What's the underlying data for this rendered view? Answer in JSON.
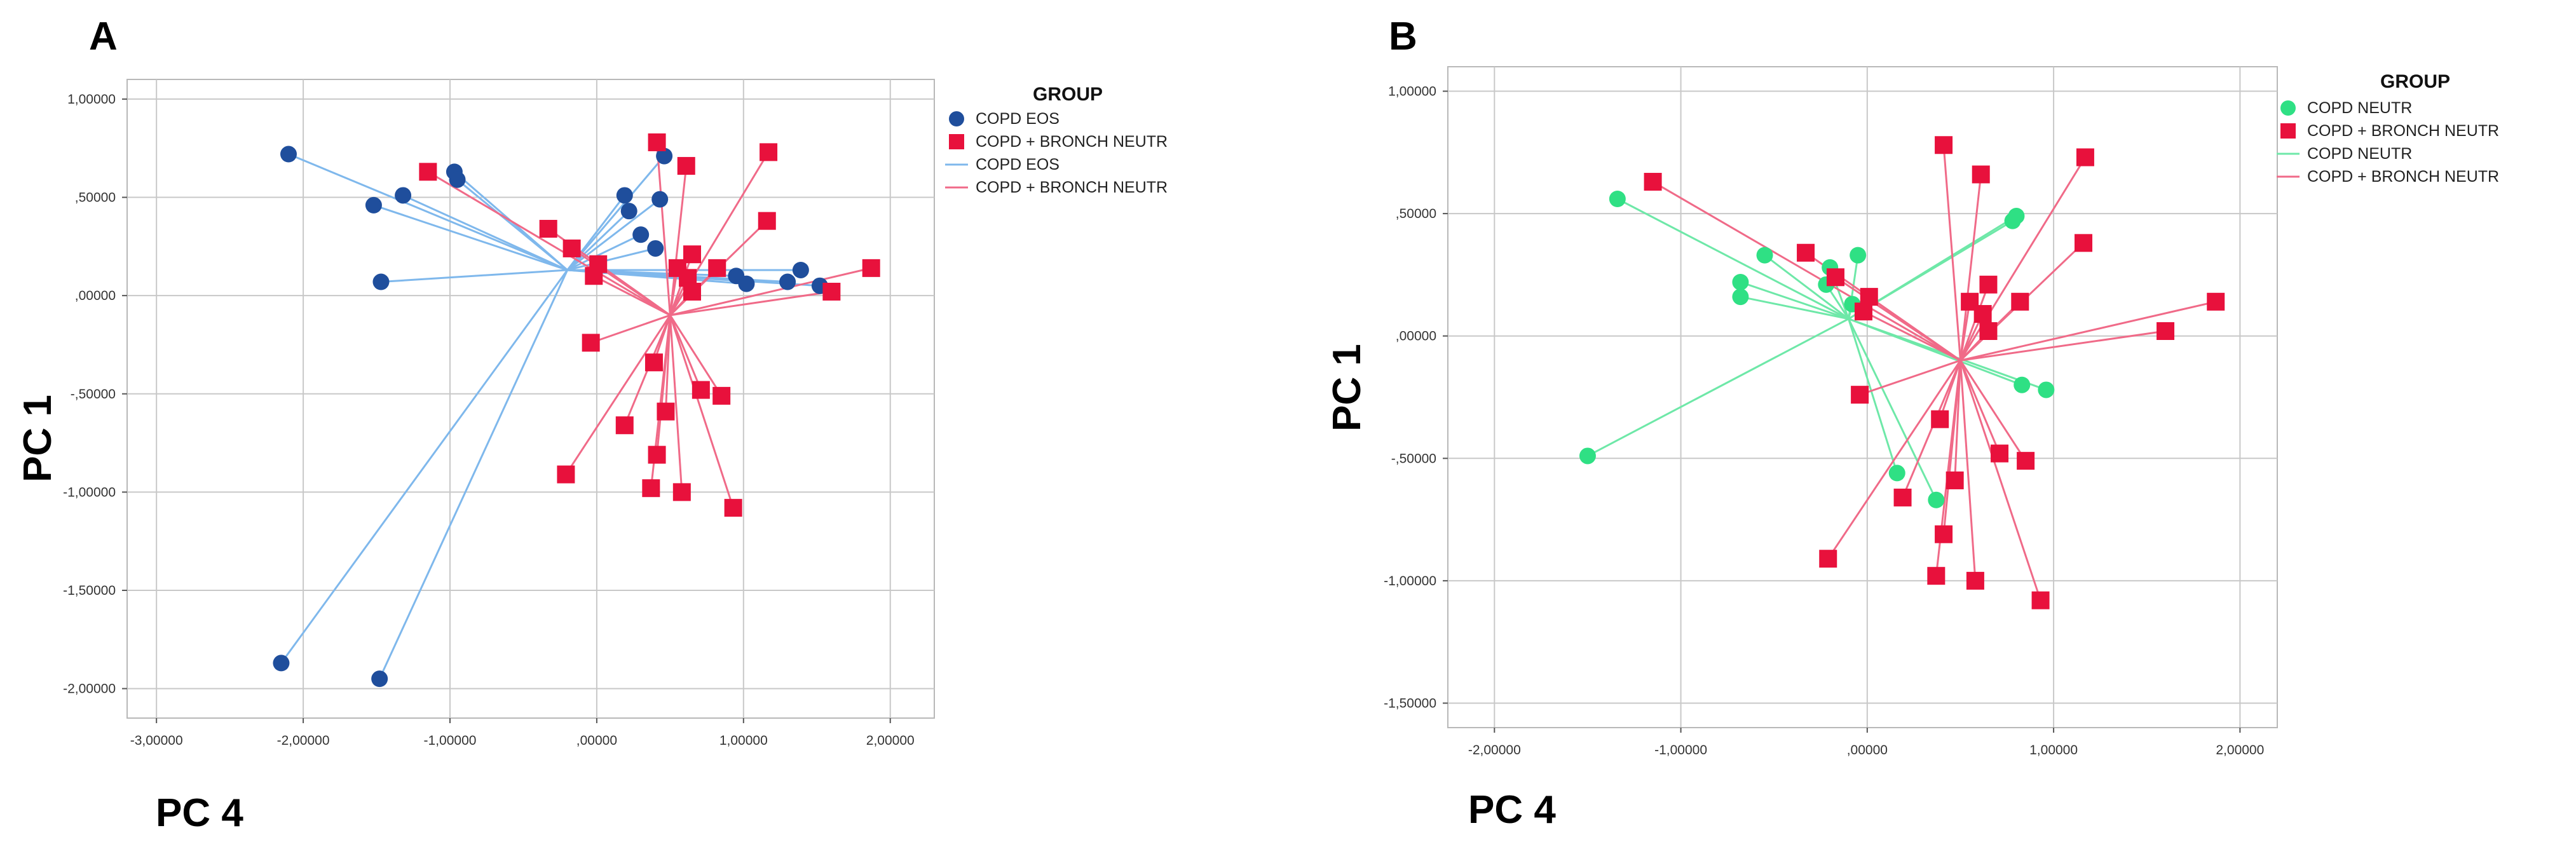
{
  "chart_data": [
    {
      "type": "scatter",
      "panel_label": "A",
      "xlabel": "PC 4",
      "ylabel": "PC 1",
      "xlim": [
        -3.2,
        2.3
      ],
      "ylim": [
        -2.15,
        1.1
      ],
      "xticks": [
        -3,
        -2,
        -1,
        0,
        1,
        2
      ],
      "xtick_labels": [
        "-3,00000",
        "-2,00000",
        "-1,00000",
        ",00000",
        "1,00000",
        "2,00000"
      ],
      "yticks": [
        1,
        0.5,
        0,
        -0.5,
        -1,
        -1.5,
        -2
      ],
      "ytick_labels": [
        "1,00000",
        ",50000",
        ",00000",
        "-,50000",
        "-1,00000",
        "-1,50000",
        "-2,00000"
      ],
      "legend": {
        "title": "GROUP",
        "items": [
          {
            "label": "COPD EOS",
            "kind": "marker",
            "shape": "circle",
            "color": "#1f4e9c"
          },
          {
            "label": "COPD + BRONCH NEUTR",
            "kind": "marker",
            "shape": "square",
            "color": "#e8113c"
          },
          {
            "label": "COPD EOS",
            "kind": "line",
            "color": "#7fb8ec"
          },
          {
            "label": "COPD + BRONCH NEUTR",
            "kind": "line",
            "color": "#f06a88"
          }
        ]
      },
      "series": [
        {
          "name": "COPD EOS",
          "shape": "circle",
          "color": "#1f4e9c",
          "line_color": "#7fb8ec",
          "centroid": [
            -0.2,
            0.13
          ],
          "points": [
            [
              -2.1,
              0.72
            ],
            [
              -1.52,
              0.46
            ],
            [
              -1.32,
              0.51
            ],
            [
              -0.97,
              0.63
            ],
            [
              -0.95,
              0.59
            ],
            [
              -1.47,
              0.07
            ],
            [
              0.19,
              0.51
            ],
            [
              0.22,
              0.43
            ],
            [
              0.46,
              0.71
            ],
            [
              0.43,
              0.49
            ],
            [
              0.3,
              0.31
            ],
            [
              0.4,
              0.24
            ],
            [
              0.95,
              0.1
            ],
            [
              1.02,
              0.06
            ],
            [
              1.3,
              0.07
            ],
            [
              1.39,
              0.13
            ],
            [
              1.52,
              0.05
            ],
            [
              -2.15,
              -1.87
            ],
            [
              -1.48,
              -1.95
            ]
          ]
        },
        {
          "name": "COPD + BRONCH NEUTR",
          "shape": "square",
          "color": "#e8113c",
          "line_color": "#f06a88",
          "centroid": [
            0.5,
            -0.1
          ],
          "points": [
            [
              -1.15,
              0.63
            ],
            [
              -0.33,
              0.34
            ],
            [
              -0.17,
              0.24
            ],
            [
              -0.02,
              0.1
            ],
            [
              0.01,
              0.16
            ],
            [
              0.41,
              0.78
            ],
            [
              0.61,
              0.66
            ],
            [
              1.17,
              0.73
            ],
            [
              1.16,
              0.38
            ],
            [
              0.65,
              0.21
            ],
            [
              0.82,
              0.14
            ],
            [
              0.55,
              0.14
            ],
            [
              0.62,
              0.09
            ],
            [
              0.65,
              0.02
            ],
            [
              1.6,
              0.02
            ],
            [
              1.87,
              0.14
            ],
            [
              -0.04,
              -0.24
            ],
            [
              0.39,
              -0.34
            ],
            [
              0.71,
              -0.48
            ],
            [
              0.85,
              -0.51
            ],
            [
              0.47,
              -0.59
            ],
            [
              0.19,
              -0.66
            ],
            [
              0.41,
              -0.81
            ],
            [
              -0.21,
              -0.91
            ],
            [
              0.37,
              -0.98
            ],
            [
              0.58,
              -1.0
            ],
            [
              0.93,
              -1.08
            ]
          ]
        }
      ]
    },
    {
      "type": "scatter",
      "panel_label": "B",
      "xlabel": "PC 4",
      "ylabel": "PC 1",
      "xlim": [
        -2.25,
        2.2
      ],
      "ylim": [
        -1.6,
        1.1
      ],
      "xticks": [
        -2,
        -1,
        0,
        1,
        2
      ],
      "xtick_labels": [
        "-2,00000",
        "-1,00000",
        ",00000",
        "1,00000",
        "2,00000"
      ],
      "yticks": [
        1,
        0.5,
        0,
        -0.5,
        -1,
        -1.5
      ],
      "ytick_labels": [
        "1,00000",
        ",50000",
        ",00000",
        "-,50000",
        "-1,00000",
        "-1,50000"
      ],
      "legend": {
        "title": "GROUP",
        "items": [
          {
            "label": "COPD NEUTR",
            "kind": "marker",
            "shape": "circle",
            "color": "#2fe084"
          },
          {
            "label": "COPD + BRONCH NEUTR",
            "kind": "marker",
            "shape": "square",
            "color": "#e8113c"
          },
          {
            "label": "COPD NEUTR",
            "kind": "line",
            "color": "#6ee8a8"
          },
          {
            "label": "COPD + BRONCH NEUTR",
            "kind": "line",
            "color": "#f06a88"
          }
        ]
      },
      "series": [
        {
          "name": "COPD NEUTR",
          "shape": "circle",
          "color": "#2fe084",
          "line_color": "#6ee8a8",
          "centroid": [
            -0.1,
            0.07
          ],
          "points": [
            [
              -1.34,
              0.56
            ],
            [
              -0.55,
              0.33
            ],
            [
              -0.05,
              0.33
            ],
            [
              -0.2,
              0.28
            ],
            [
              -0.68,
              0.22
            ],
            [
              -0.68,
              0.16
            ],
            [
              -0.22,
              0.21
            ],
            [
              -0.08,
              0.13
            ],
            [
              0.78,
              0.47
            ],
            [
              0.8,
              0.49
            ],
            [
              0.83,
              -0.2
            ],
            [
              0.96,
              -0.22
            ],
            [
              -1.5,
              -0.49
            ],
            [
              0.16,
              -0.56
            ],
            [
              0.37,
              -0.67
            ]
          ]
        },
        {
          "name": "COPD + BRONCH NEUTR",
          "shape": "square",
          "color": "#e8113c",
          "line_color": "#f06a88",
          "centroid": [
            0.5,
            -0.1
          ],
          "points": [
            [
              -1.15,
              0.63
            ],
            [
              -0.33,
              0.34
            ],
            [
              -0.17,
              0.24
            ],
            [
              -0.02,
              0.1
            ],
            [
              0.01,
              0.16
            ],
            [
              0.41,
              0.78
            ],
            [
              0.61,
              0.66
            ],
            [
              1.17,
              0.73
            ],
            [
              1.16,
              0.38
            ],
            [
              0.65,
              0.21
            ],
            [
              0.82,
              0.14
            ],
            [
              0.55,
              0.14
            ],
            [
              0.62,
              0.09
            ],
            [
              0.65,
              0.02
            ],
            [
              1.6,
              0.02
            ],
            [
              1.87,
              0.14
            ],
            [
              -0.04,
              -0.24
            ],
            [
              0.39,
              -0.34
            ],
            [
              0.71,
              -0.48
            ],
            [
              0.85,
              -0.51
            ],
            [
              0.47,
              -0.59
            ],
            [
              0.19,
              -0.66
            ],
            [
              0.41,
              -0.81
            ],
            [
              -0.21,
              -0.91
            ],
            [
              0.37,
              -0.98
            ],
            [
              0.58,
              -1.0
            ],
            [
              0.93,
              -1.08
            ]
          ]
        }
      ]
    }
  ]
}
